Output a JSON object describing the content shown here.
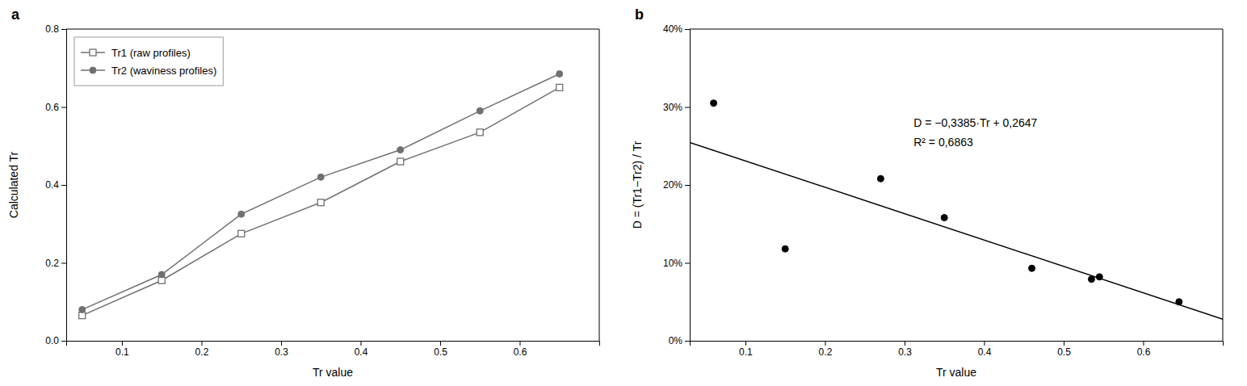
{
  "chart_data": [
    {
      "type": "line",
      "title": "a",
      "x_label": "Tr value",
      "y_label": "Calculated Tr",
      "x": [
        0.05,
        0.15,
        0.25,
        0.35,
        0.45,
        0.55,
        0.65
      ],
      "series": [
        {
          "name": "Tr1 (raw profiles)",
          "color": "#707070",
          "marker": "open-square",
          "values": [
            0.065,
            0.155,
            0.275,
            0.355,
            0.46,
            0.535,
            0.65
          ]
        },
        {
          "name": "Tr2 (waviness profiles)",
          "color": "#707070",
          "marker": "circle",
          "values": [
            0.08,
            0.17,
            0.325,
            0.42,
            0.49,
            0.59,
            0.685
          ]
        }
      ],
      "xlim": [
        0.03,
        0.7
      ],
      "ylim": [
        0,
        0.8
      ],
      "xticks": [
        0.1,
        0.2,
        0.3,
        0.4,
        0.5,
        0.6
      ],
      "yticks": [
        {
          "value": 0,
          "label": "0.0"
        },
        0.2,
        0.4,
        0.6,
        0.8
      ],
      "legend": "upper left"
    },
    {
      "type": "scatter",
      "title": "b",
      "x_label": "Tr value",
      "y_label": "D = (Tr1−Tr2) / Tr",
      "series": [
        {
          "color": "#000000",
          "marker": "circle",
          "x": [
            0.06,
            0.15,
            0.27,
            0.35,
            0.46,
            0.535,
            0.545,
            0.645
          ],
          "values": [
            0.305,
            0.118,
            0.208,
            0.158,
            0.093,
            0.079,
            0.082,
            0.05
          ]
        },
        {
          "type": "line",
          "color": "#000000",
          "x": [
            0.03,
            0.7
          ],
          "values": [
            0.254545,
            0.02775
          ]
        }
      ],
      "xlim": [
        0.03,
        0.7
      ],
      "ylim": [
        0,
        0.4
      ],
      "xticks": [
        0.1,
        0.2,
        0.3,
        0.4,
        0.5,
        0.6
      ],
      "yticks": [
        {
          "value": 0.0,
          "label": "0%"
        },
        {
          "value": 0.1,
          "label": "10%"
        },
        {
          "value": 0.2,
          "label": "20%"
        },
        {
          "value": 0.3,
          "label": "30%"
        },
        {
          "value": 0.4,
          "label": "40%"
        }
      ],
      "annotations": [
        "D = −0,3385·Tr + 0,2647",
        "R² = 0,6863"
      ]
    }
  ]
}
